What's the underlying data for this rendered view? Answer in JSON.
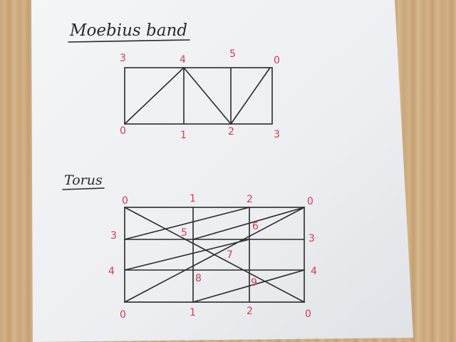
{
  "mobius": {
    "title": "Moebius band",
    "top_labels": [
      "3",
      "4",
      "5",
      "0"
    ],
    "bottom_labels": [
      "0",
      "1",
      "2",
      "3"
    ]
  },
  "torus": {
    "title": "Torus",
    "top_labels": [
      "0",
      "1",
      "2",
      "0"
    ],
    "bottom_labels": [
      "0",
      "1",
      "2",
      "0"
    ],
    "left_labels": [
      "3",
      "4"
    ],
    "right_labels": [
      "3",
      "4"
    ],
    "inner_labels": [
      "5",
      "6",
      "7",
      "8",
      "9"
    ]
  },
  "colors": {
    "paper": "#eef0f2",
    "ink": "#2a2a2a",
    "label": "#d83a4a"
  }
}
